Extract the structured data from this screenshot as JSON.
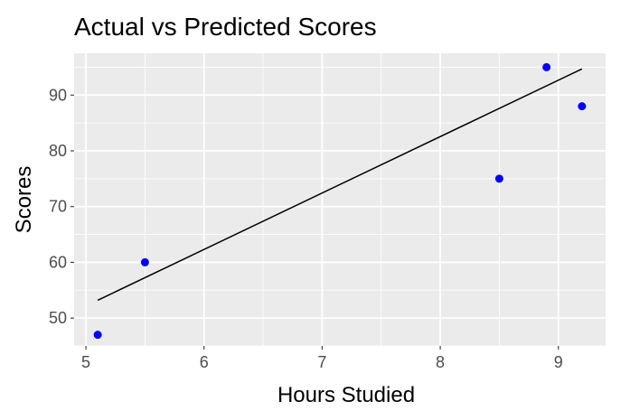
{
  "chart_data": {
    "type": "scatter",
    "title": "Actual vs Predicted Scores",
    "xlabel": "Hours Studied",
    "ylabel": "Scores",
    "xlim": [
      4.9,
      9.4
    ],
    "ylim": [
      45,
      97.5
    ],
    "x_ticks": [
      5,
      6,
      7,
      8,
      9
    ],
    "y_ticks": [
      50,
      60,
      70,
      80,
      90
    ],
    "grid": true,
    "legend": "none",
    "point_color": "#0000ff",
    "line_color": "#000000",
    "panel_background": "#ebebeb",
    "grid_color": "#ffffff",
    "points": [
      {
        "x": 5.1,
        "y": 47
      },
      {
        "x": 5.5,
        "y": 60
      },
      {
        "x": 8.5,
        "y": 75
      },
      {
        "x": 8.9,
        "y": 95
      },
      {
        "x": 9.2,
        "y": 88
      }
    ],
    "fit_line": [
      {
        "x": 5.1,
        "y": 53.2
      },
      {
        "x": 9.2,
        "y": 94.7
      }
    ]
  }
}
